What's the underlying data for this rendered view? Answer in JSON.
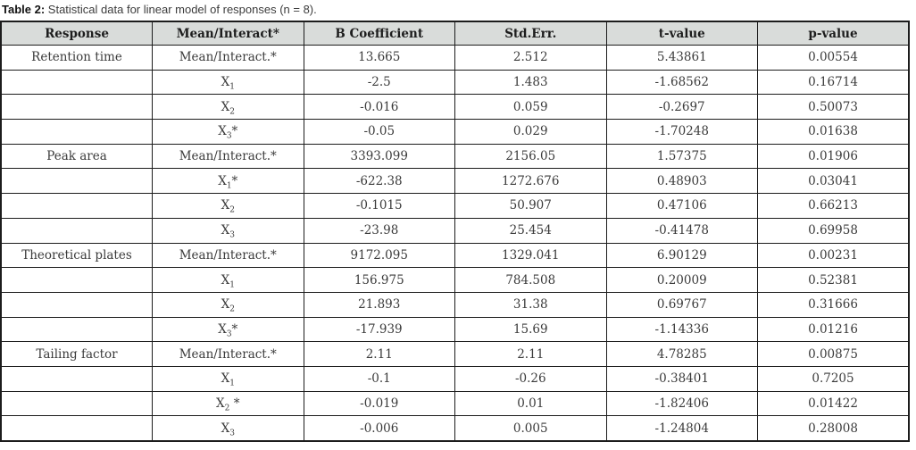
{
  "caption": {
    "label": "Table 2:",
    "text": "Statistical data for linear model of responses (n = 8)."
  },
  "colors": {
    "header_bg": "#d9dcda",
    "border": "#1c1c1c",
    "body_text": "#3b3b3b",
    "header_text": "#1d1d1d"
  },
  "table": {
    "headers": [
      "Response",
      "Mean/Interact*",
      "B Coefficient",
      "Std.Err.",
      "t-value",
      "p-value"
    ],
    "rows": [
      {
        "response": "Retention time",
        "factor": {
          "base": "Mean/Interact.*",
          "sub": "",
          "suffix": ""
        },
        "b_coefficient": "13.665",
        "std_err": "2.512",
        "t_value": "5.43861",
        "p_value": "0.00554"
      },
      {
        "response": "",
        "factor": {
          "base": "X",
          "sub": "1",
          "suffix": ""
        },
        "b_coefficient": "-2.5",
        "std_err": "1.483",
        "t_value": "-1.68562",
        "p_value": "0.16714"
      },
      {
        "response": "",
        "factor": {
          "base": "X",
          "sub": "2",
          "suffix": ""
        },
        "b_coefficient": "-0.016",
        "std_err": "0.059",
        "t_value": "-0.2697",
        "p_value": "0.50073"
      },
      {
        "response": "",
        "factor": {
          "base": "X",
          "sub": "3",
          "suffix": "*"
        },
        "b_coefficient": "-0.05",
        "std_err": "0.029",
        "t_value": "-1.70248",
        "p_value": "0.01638"
      },
      {
        "response": "Peak area",
        "factor": {
          "base": "Mean/Interact.*",
          "sub": "",
          "suffix": ""
        },
        "b_coefficient": "3393.099",
        "std_err": "2156.05",
        "t_value": "1.57375",
        "p_value": "0.01906"
      },
      {
        "response": "",
        "factor": {
          "base": "X",
          "sub": "1",
          "suffix": "*"
        },
        "b_coefficient": "-622.38",
        "std_err": "1272.676",
        "t_value": "0.48903",
        "p_value": "0.03041"
      },
      {
        "response": "",
        "factor": {
          "base": "X",
          "sub": "2",
          "suffix": ""
        },
        "b_coefficient": "-0.1015",
        "std_err": "50.907",
        "t_value": "0.47106",
        "p_value": "0.66213"
      },
      {
        "response": "",
        "factor": {
          "base": "X",
          "sub": "3",
          "suffix": ""
        },
        "b_coefficient": "-23.98",
        "std_err": "25.454",
        "t_value": "-0.41478",
        "p_value": "0.69958"
      },
      {
        "response": "Theoretical plates",
        "factor": {
          "base": "Mean/Interact.*",
          "sub": "",
          "suffix": ""
        },
        "b_coefficient": "9172.095",
        "std_err": "1329.041",
        "t_value": "6.90129",
        "p_value": "0.00231"
      },
      {
        "response": "",
        "factor": {
          "base": "X",
          "sub": "1",
          "suffix": ""
        },
        "b_coefficient": "156.975",
        "std_err": "784.508",
        "t_value": "0.20009",
        "p_value": "0.52381"
      },
      {
        "response": "",
        "factor": {
          "base": "X",
          "sub": "2",
          "suffix": ""
        },
        "b_coefficient": "21.893",
        "std_err": "31.38",
        "t_value": "0.69767",
        "p_value": "0.31666"
      },
      {
        "response": "",
        "factor": {
          "base": "X",
          "sub": "3",
          "suffix": "*"
        },
        "b_coefficient": "-17.939",
        "std_err": "15.69",
        "t_value": "-1.14336",
        "p_value": "0.01216"
      },
      {
        "response": "Tailing factor",
        "factor": {
          "base": "Mean/Interact.*",
          "sub": "",
          "suffix": ""
        },
        "b_coefficient": "2.11",
        "std_err": "2.11",
        "t_value": "4.78285",
        "p_value": "0.00875"
      },
      {
        "response": "",
        "factor": {
          "base": "X",
          "sub": "1",
          "suffix": ""
        },
        "b_coefficient": "-0.1",
        "std_err": "-0.26",
        "t_value": "-0.38401",
        "p_value": "0.7205"
      },
      {
        "response": "",
        "factor": {
          "base": "X",
          "sub": "2",
          "suffix": " *"
        },
        "b_coefficient": "-0.019",
        "std_err": "0.01",
        "t_value": "-1.82406",
        "p_value": "0.01422"
      },
      {
        "response": "",
        "factor": {
          "base": "X",
          "sub": "3",
          "suffix": ""
        },
        "b_coefficient": "-0.006",
        "std_err": "0.005",
        "t_value": "-1.24804",
        "p_value": "0.28008"
      }
    ]
  }
}
